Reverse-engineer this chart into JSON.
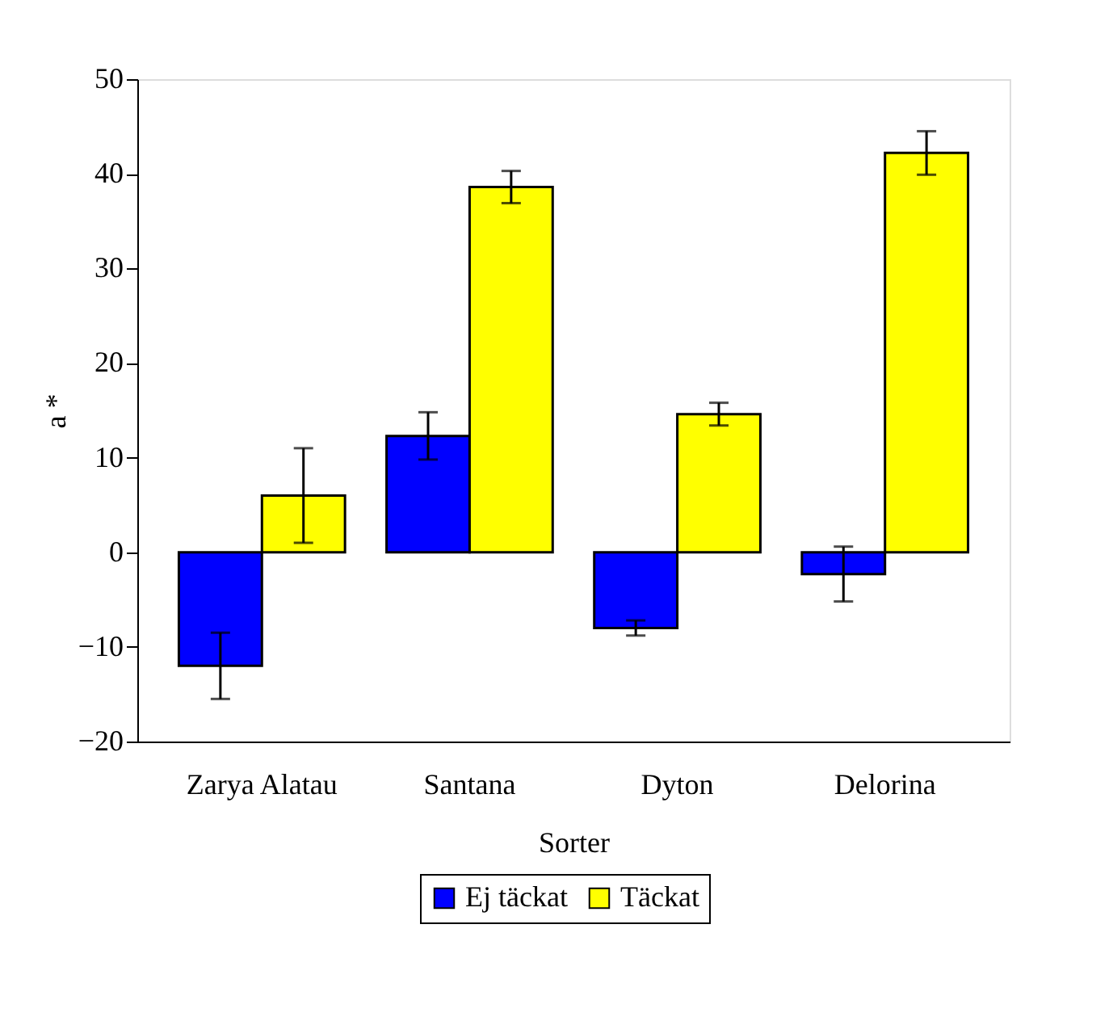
{
  "chart_data": {
    "type": "bar",
    "xlabel": "Sorter",
    "ylabel": "a *",
    "categories": [
      "Zarya Alatau",
      "Santana",
      "Dyton",
      "Delorina"
    ],
    "series": [
      {
        "name": "Ej täckat",
        "color": "#0000ff",
        "values": [
          -12,
          12.3,
          -8,
          -2.3
        ],
        "errors": [
          3.5,
          2.5,
          0.8,
          2.9
        ]
      },
      {
        "name": "Täckat",
        "color": "#ffff00",
        "values": [
          6,
          38.6,
          14.6,
          42.2
        ],
        "errors": [
          5,
          1.7,
          1.2,
          2.3
        ]
      }
    ],
    "ylim": [
      -20,
      50
    ],
    "yticks": [
      -20,
      -10,
      0,
      10,
      20,
      30,
      40,
      50
    ],
    "grid": false,
    "legend": "bottom"
  }
}
